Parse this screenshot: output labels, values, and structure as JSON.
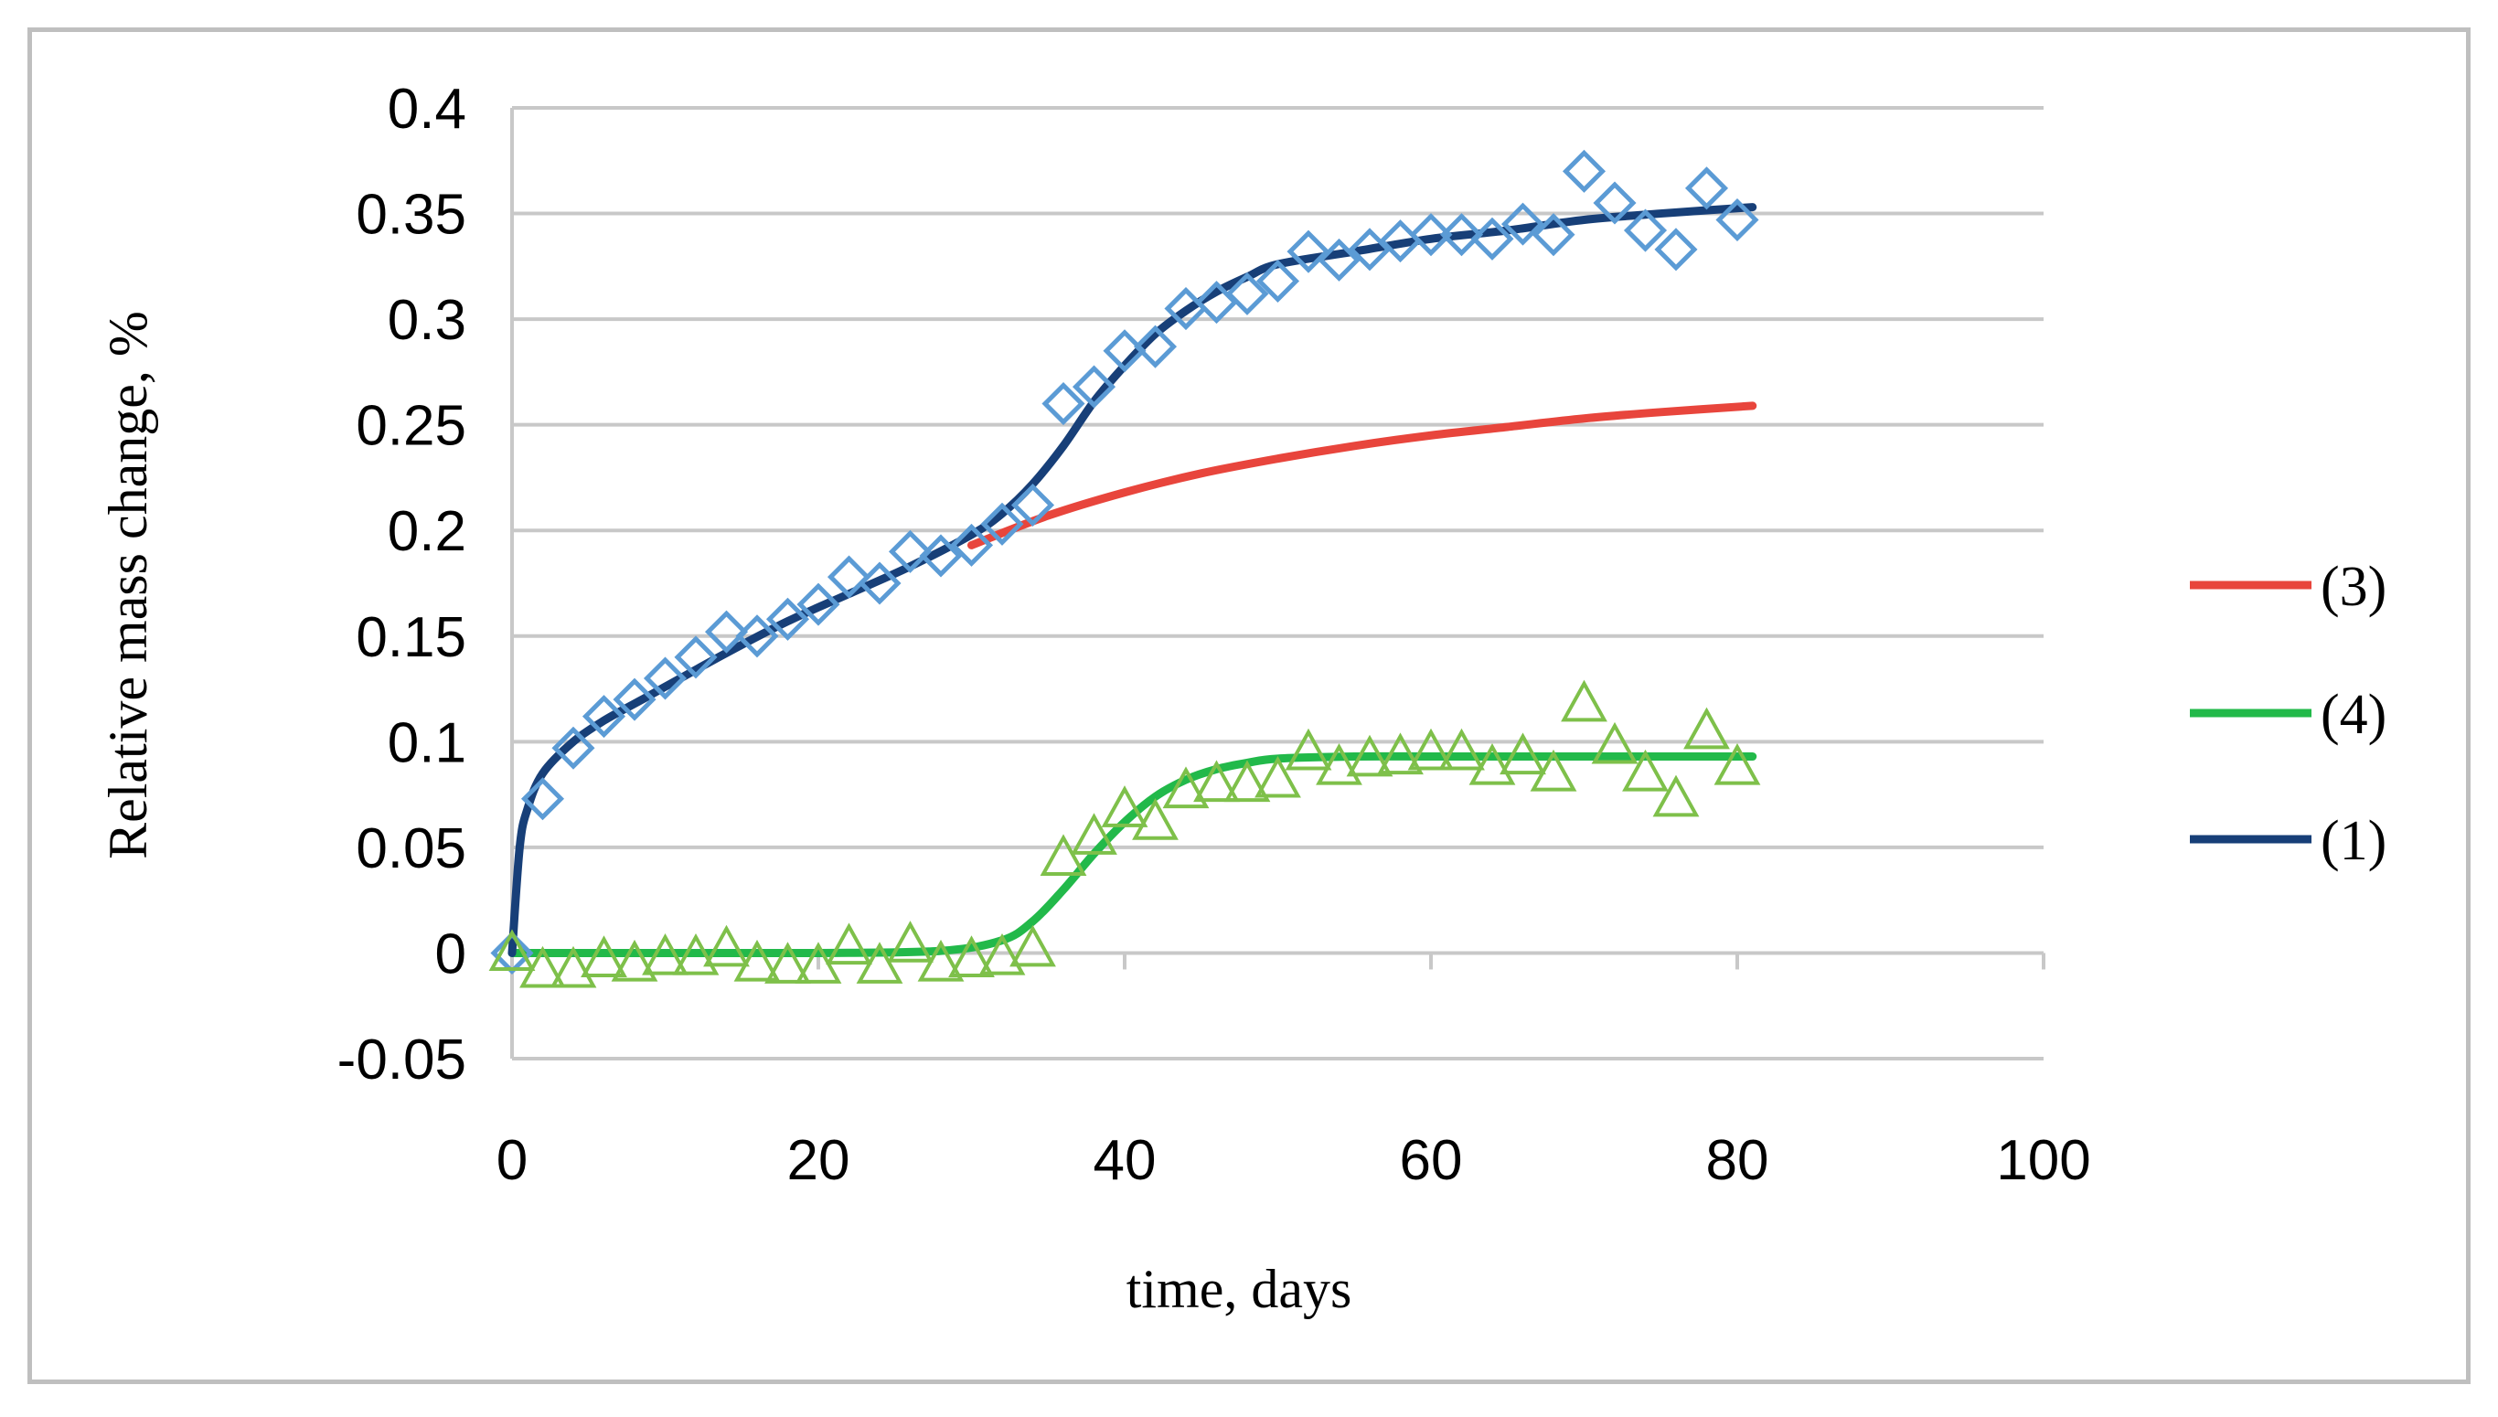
{
  "chart_data": {
    "type": "scatter",
    "xlabel": "time, days",
    "ylabel": "Relative mass change, %",
    "xlim": [
      0,
      100
    ],
    "ylim": [
      -0.05,
      0.4
    ],
    "x_ticks": [
      "0",
      "20",
      "40",
      "60",
      "80",
      "100"
    ],
    "y_ticks": [
      "-0.05",
      "0",
      "0.05",
      "0.1",
      "0.15",
      "0.2",
      "0.25",
      "0.3",
      "0.35",
      "0.4"
    ],
    "grid": "horizontal",
    "legend_position": "right",
    "series": [
      {
        "name": "(3)",
        "kind": "fit-line",
        "color": "#e8453c",
        "x": [
          30,
          35,
          40,
          45,
          50,
          55,
          60,
          65,
          70,
          75,
          81
        ],
        "y": [
          0.193,
          0.207,
          0.218,
          0.227,
          0.234,
          0.24,
          0.245,
          0.249,
          0.253,
          0.256,
          0.259
        ]
      },
      {
        "name": "(4)",
        "kind": "fit-line",
        "color": "#22b94a",
        "x": [
          0,
          10,
          20,
          28,
          32,
          34,
          36,
          38,
          40,
          42,
          44,
          46,
          48,
          50,
          55,
          60,
          65,
          70,
          75,
          81
        ],
        "y": [
          0,
          0,
          0,
          0.001,
          0.006,
          0.015,
          0.03,
          0.047,
          0.062,
          0.074,
          0.082,
          0.087,
          0.09,
          0.092,
          0.093,
          0.093,
          0.093,
          0.093,
          0.093,
          0.093
        ]
      },
      {
        "name": "(1)",
        "kind": "fit-line",
        "color": "#173f78",
        "x": [
          0,
          0.5,
          1,
          2,
          4,
          6,
          8,
          10,
          14,
          18,
          22,
          26,
          30,
          32,
          34,
          36,
          38,
          40,
          42,
          44,
          46,
          48,
          50,
          55,
          60,
          65,
          70,
          75,
          81
        ],
        "y": [
          0,
          0.05,
          0.068,
          0.085,
          0.1,
          0.11,
          0.118,
          0.126,
          0.142,
          0.157,
          0.17,
          0.183,
          0.198,
          0.208,
          0.222,
          0.24,
          0.261,
          0.278,
          0.293,
          0.304,
          0.313,
          0.32,
          0.326,
          0.332,
          0.338,
          0.342,
          0.347,
          0.35,
          0.353
        ]
      }
    ],
    "markers": [
      {
        "series": "(1)",
        "shape": "diamond",
        "color": "#5b9bd5",
        "x": [
          0,
          2,
          4,
          6,
          8,
          10,
          12,
          14,
          16,
          18,
          20,
          22,
          24,
          26,
          28,
          30,
          32,
          34,
          36,
          38,
          40,
          42,
          44,
          46,
          48,
          50,
          52,
          54,
          56,
          58,
          60,
          62,
          64,
          66,
          68,
          70,
          72,
          74,
          76,
          78,
          80
        ],
        "y": [
          0,
          0.073,
          0.097,
          0.112,
          0.12,
          0.13,
          0.14,
          0.152,
          0.15,
          0.158,
          0.165,
          0.178,
          0.175,
          0.19,
          0.188,
          0.193,
          0.203,
          0.212,
          0.26,
          0.268,
          0.285,
          0.287,
          0.305,
          0.308,
          0.312,
          0.318,
          0.332,
          0.328,
          0.333,
          0.337,
          0.34,
          0.34,
          0.338,
          0.345,
          0.34,
          0.37,
          0.355,
          0.342,
          0.333,
          0.362,
          0.347
        ]
      },
      {
        "series": "(4)",
        "shape": "triangle",
        "color": "#7ec04a",
        "x": [
          0,
          2,
          4,
          6,
          8,
          10,
          12,
          14,
          16,
          18,
          20,
          22,
          24,
          26,
          28,
          30,
          32,
          34,
          36,
          38,
          40,
          42,
          44,
          46,
          48,
          50,
          52,
          54,
          56,
          58,
          60,
          62,
          64,
          66,
          68,
          70,
          72,
          74,
          76,
          78,
          80
        ],
        "y": [
          0,
          -0.008,
          -0.008,
          -0.003,
          -0.005,
          -0.002,
          -0.002,
          0.002,
          -0.005,
          -0.006,
          -0.006,
          0.003,
          -0.006,
          0.004,
          -0.005,
          -0.003,
          -0.002,
          0.002,
          0.045,
          0.055,
          0.068,
          0.062,
          0.077,
          0.08,
          0.08,
          0.082,
          0.095,
          0.088,
          0.092,
          0.093,
          0.095,
          0.095,
          0.088,
          0.093,
          0.085,
          0.118,
          0.098,
          0.085,
          0.073,
          0.105,
          0.088
        ]
      }
    ]
  }
}
